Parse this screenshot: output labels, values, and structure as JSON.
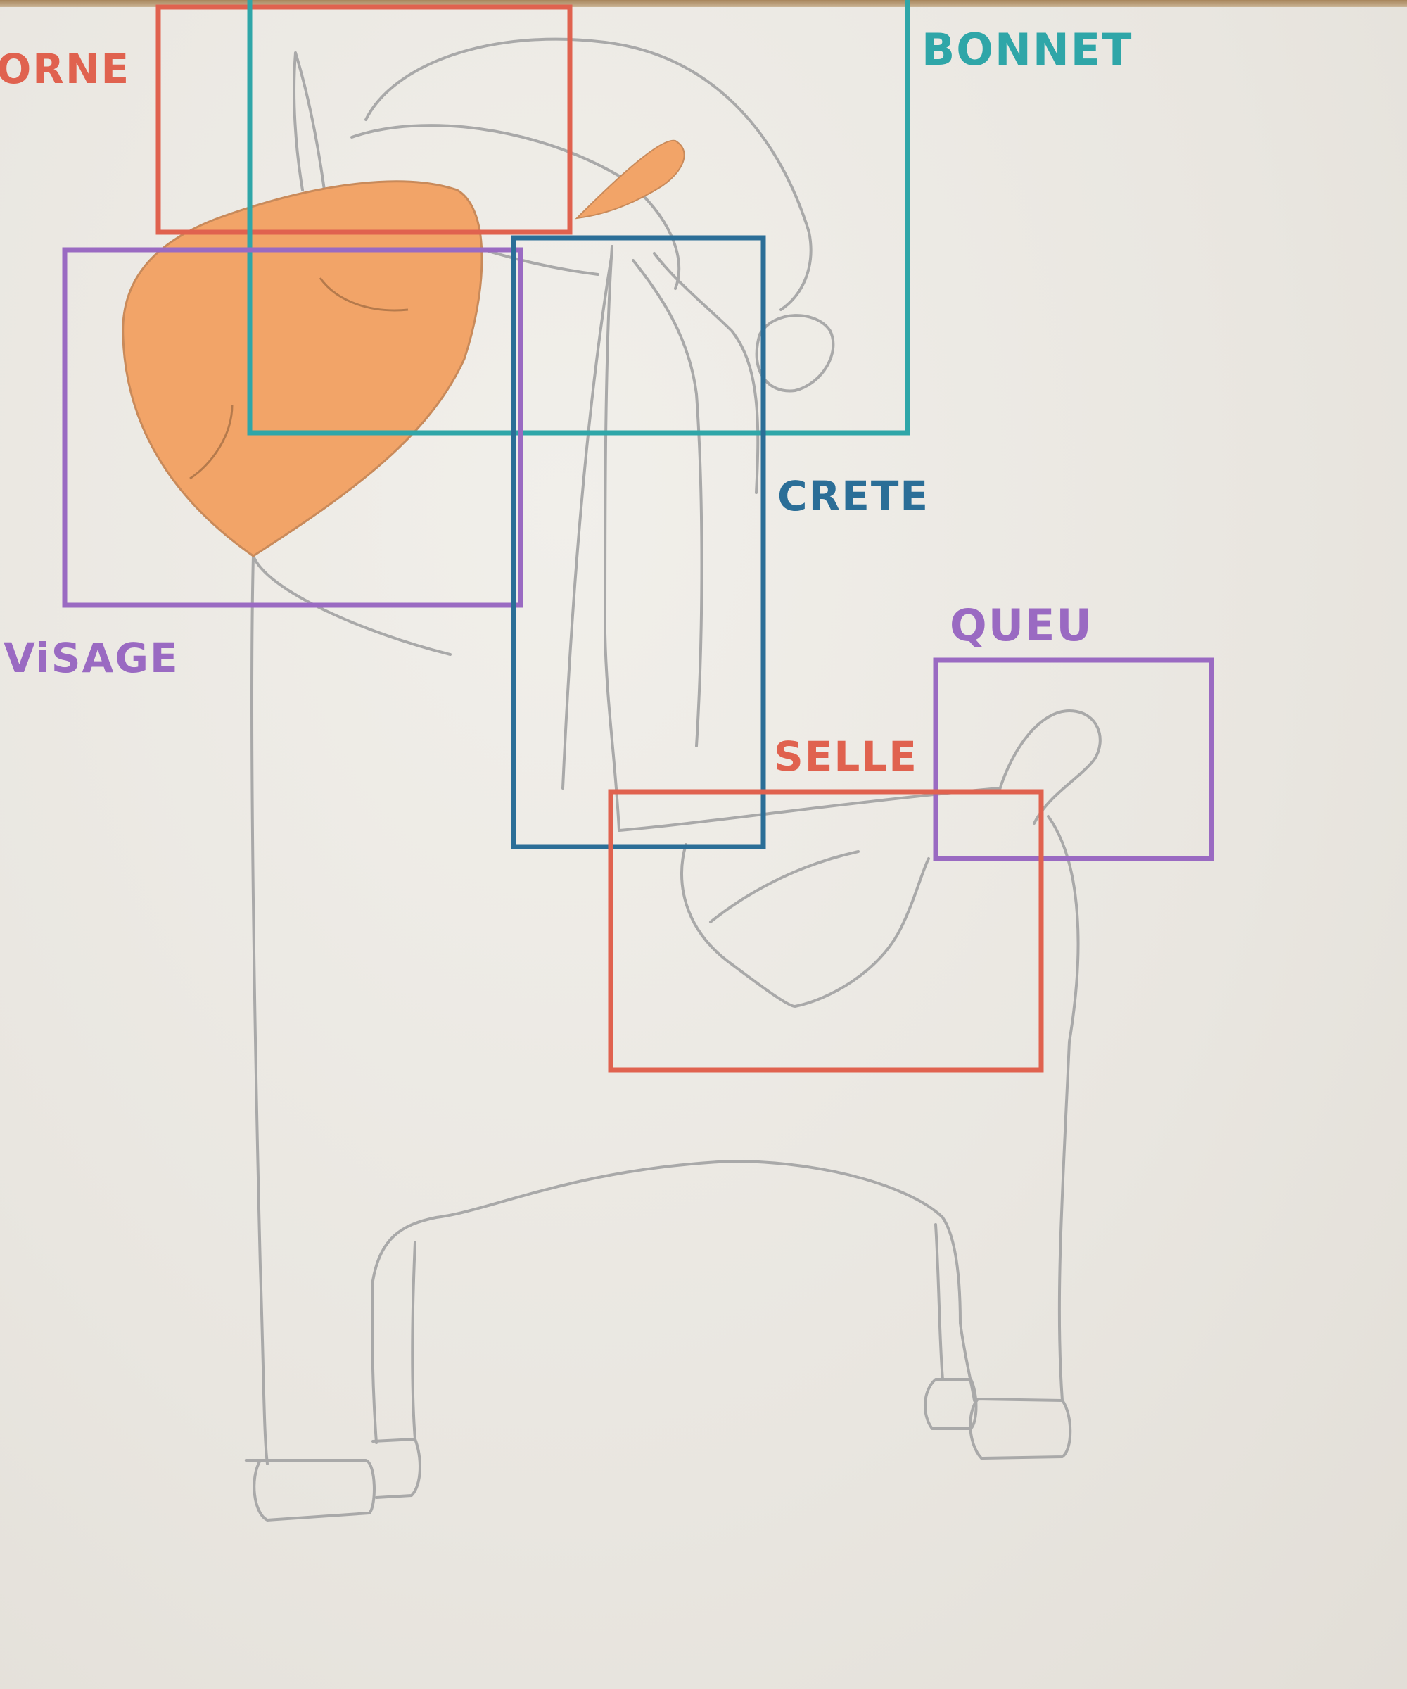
{
  "colors": {
    "paper": "#ebe8e3",
    "pencil": "#a9a9a9",
    "orange_fill": "#f2a468",
    "red_marker": "#e0624f",
    "teal_marker": "#2fa6a8",
    "blue_marker": "#2b6e97",
    "purple_marker": "#9a6ac2"
  },
  "labels": {
    "corne": "ORNE",
    "bonnet": "BONNET",
    "crete": "CRETE",
    "visage": "ViSAGE",
    "queu": "QUEU",
    "selle": "SELLE"
  },
  "regions": {
    "corne": {
      "label": "ORNE",
      "color": "#e0624f"
    },
    "bonnet": {
      "label": "BONNET",
      "color": "#2fa6a8"
    },
    "visage": {
      "label": "ViSAGE",
      "color": "#9a6ac2"
    },
    "crete": {
      "label": "CRETE",
      "color": "#2b6e97"
    },
    "queu": {
      "label": "QUEU",
      "color": "#9a6ac2"
    },
    "selle": {
      "label": "SELLE",
      "color": "#e0624f"
    }
  },
  "subject": {
    "drawing": "pencil-sketch-unicorn",
    "colored_part": "orange-filled-head"
  }
}
